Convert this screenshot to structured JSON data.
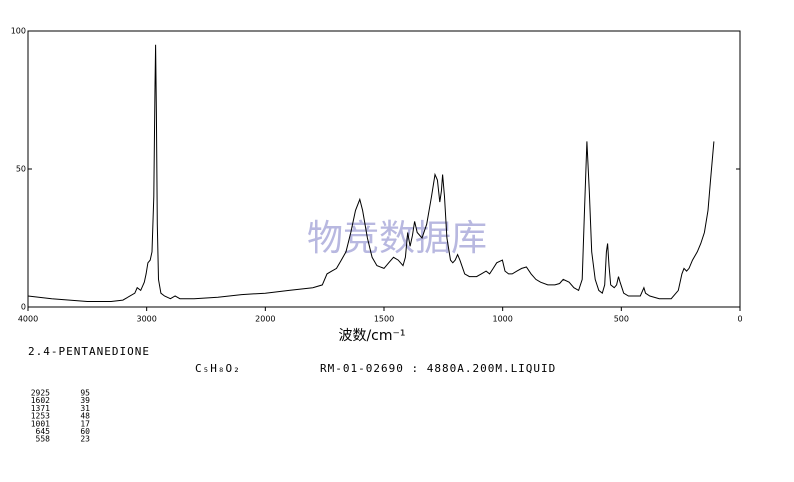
{
  "chart_data": {
    "type": "line",
    "compound": "2.4-PENTANEDIONE",
    "formula": "C₅H₈O₂",
    "sample_info": "RM-01-02690 : 4880A.200M.LIQUID",
    "watermark": "物竞数据库",
    "x_label": "波数/cm⁻¹",
    "xlim": [
      4000,
      0
    ],
    "xticks": [
      4000,
      3000,
      2000,
      1500,
      1000,
      500,
      0
    ],
    "x_break": 2000,
    "ylim": [
      0,
      100
    ],
    "yticks": [
      100,
      50,
      0
    ],
    "color": "#000000",
    "x": [
      4000,
      3800,
      3500,
      3300,
      3200,
      3100,
      3080,
      3050,
      3020,
      3005,
      2990,
      2970,
      2955,
      2940,
      2930,
      2925,
      2918,
      2910,
      2900,
      2880,
      2850,
      2800,
      2760,
      2720,
      2600,
      2400,
      2200,
      2000,
      1900,
      1800,
      1760,
      1740,
      1720,
      1700,
      1680,
      1660,
      1640,
      1620,
      1602,
      1590,
      1570,
      1550,
      1530,
      1500,
      1480,
      1460,
      1440,
      1420,
      1410,
      1400,
      1390,
      1380,
      1371,
      1360,
      1340,
      1320,
      1300,
      1285,
      1275,
      1265,
      1258,
      1253,
      1245,
      1235,
      1220,
      1210,
      1200,
      1190,
      1180,
      1160,
      1140,
      1110,
      1090,
      1070,
      1055,
      1040,
      1025,
      1001,
      990,
      975,
      960,
      940,
      920,
      900,
      880,
      860,
      840,
      810,
      780,
      760,
      745,
      720,
      700,
      680,
      665,
      655,
      645,
      635,
      625,
      610,
      595,
      580,
      570,
      563,
      558,
      552,
      545,
      530,
      520,
      512,
      505,
      490,
      470,
      450,
      420,
      405,
      398,
      380,
      340,
      310,
      290,
      260,
      245,
      236,
      225,
      215,
      200,
      180,
      165,
      150,
      135,
      125,
      115,
      110
    ],
    "values": [
      4,
      3,
      2,
      2,
      2.5,
      5,
      7,
      6,
      9,
      12,
      16,
      17,
      20,
      40,
      80,
      95,
      70,
      30,
      10,
      5,
      4,
      3,
      4,
      3,
      3,
      3.5,
      4.5,
      5,
      6,
      7,
      8,
      12,
      13,
      14,
      17,
      20,
      27,
      35,
      39,
      35,
      25,
      18,
      15,
      14,
      16,
      18,
      17,
      15,
      18,
      27,
      22,
      26,
      31,
      27,
      25,
      30,
      40,
      48,
      46,
      38,
      42,
      48,
      40,
      25,
      17,
      16,
      17,
      19,
      17,
      12,
      11,
      11,
      12,
      13,
      12,
      14,
      16,
      17,
      13,
      12,
      12,
      13,
      14,
      14.5,
      12,
      10,
      9,
      8,
      8,
      8.5,
      10,
      9,
      7,
      6,
      10,
      35,
      60,
      42,
      20,
      10,
      6,
      5,
      8,
      20,
      23,
      15,
      8,
      7,
      8,
      11,
      9,
      5,
      4,
      4,
      4,
      7,
      5,
      4,
      3,
      3,
      3,
      6,
      12,
      14,
      13,
      14,
      17,
      20,
      23,
      27,
      35,
      45,
      55,
      60
    ],
    "peaks": [
      [
        "2925",
        "95"
      ],
      [
        "1602",
        "39"
      ],
      [
        "1371",
        "31"
      ],
      [
        "1253",
        "48"
      ],
      [
        "1001",
        "17"
      ],
      [
        "645",
        "60"
      ],
      [
        "558",
        "23"
      ]
    ]
  }
}
